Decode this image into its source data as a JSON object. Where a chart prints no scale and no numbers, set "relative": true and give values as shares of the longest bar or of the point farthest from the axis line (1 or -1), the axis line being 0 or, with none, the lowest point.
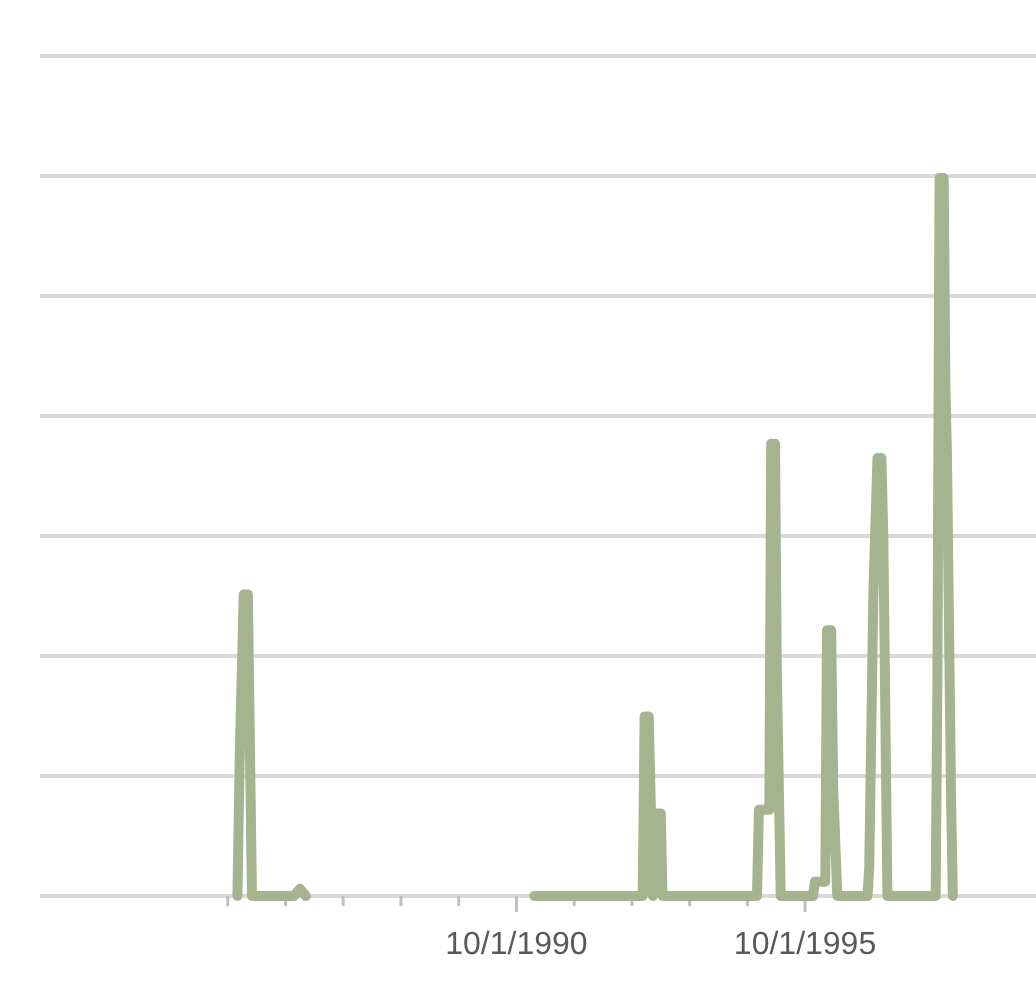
{
  "chart_data": {
    "type": "line",
    "relative": true,
    "grid": "y",
    "line_style": "solid",
    "xlim": [
      "1982-07-01",
      "1999-10-01"
    ],
    "xticks": [
      {
        "value": "1985-10-01",
        "label": null
      },
      {
        "value": "1986-10-01",
        "label": null
      },
      {
        "value": "1987-10-01",
        "label": null
      },
      {
        "value": "1988-10-01",
        "label": null
      },
      {
        "value": "1989-10-01",
        "label": null
      },
      {
        "value": "1990-10-01",
        "label": "10/1/1990"
      },
      {
        "value": "1991-10-01",
        "label": null
      },
      {
        "value": "1992-10-01",
        "label": null
      },
      {
        "value": "1993-10-01",
        "label": null
      },
      {
        "value": "1994-10-01",
        "label": null
      },
      {
        "value": "1995-10-01",
        "label": "10/1/1995"
      }
    ],
    "x": [
      "1985-12-01",
      "1985-12-16",
      "1986-01-10",
      "1986-02-05",
      "1986-03-03",
      "1986-04-08",
      "1986-11-24",
      "1987-01-01",
      "1987-02-07",
      "1988-06-01",
      "1991-01-22",
      "1992-12-08",
      "1992-12-20",
      "1993-01-15",
      "1993-02-10",
      "1993-03-08",
      "1993-04-01",
      "1993-04-12",
      "1994-12-01",
      "1994-12-13",
      "1995-02-17",
      "1995-03-01",
      "1995-03-25",
      "1995-04-05",
      "1995-04-30",
      "1995-11-20",
      "1995-12-02",
      "1996-02-06",
      "1996-02-17",
      "1996-03-14",
      "1996-03-27",
      "1996-04-22",
      "1996-10-30",
      "1996-11-10",
      "1996-12-06",
      "1997-01-01",
      "1997-01-26",
      "1997-02-07",
      "1997-03-05",
      "1998-01-04",
      "1998-01-15",
      "1998-01-29",
      "1998-02-24",
      "1998-03-07",
      "1998-03-17",
      "1998-04-12",
      "1998-04-23"
    ],
    "series": [
      {
        "color": "#a5b38f",
        "values": [
          0,
          0.2,
          0.42,
          0.42,
          0,
          0,
          0,
          0.01,
          0,
          null,
          0,
          0,
          0.25,
          0.25,
          0,
          0.115,
          0.115,
          0,
          0,
          0.12,
          0.12,
          0.63,
          0.63,
          0.32,
          0,
          0,
          0.02,
          0.02,
          0.37,
          0.37,
          0.15,
          0,
          0,
          0.04,
          0.42,
          0.61,
          0.61,
          0.5,
          0,
          0,
          0.29,
          1,
          1,
          0.71,
          0.61,
          0.13,
          0
        ]
      }
    ]
  }
}
